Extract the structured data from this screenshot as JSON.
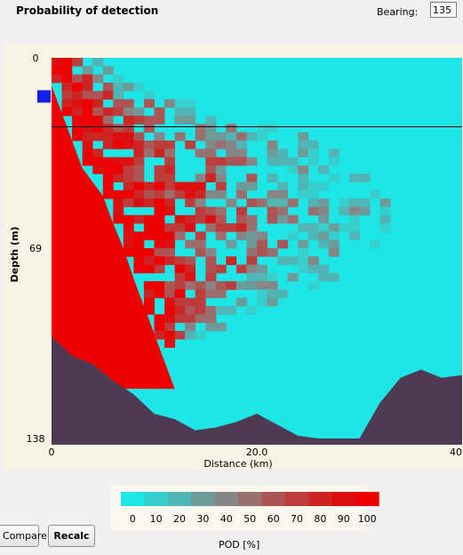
{
  "header": {
    "title": "Probability of detection",
    "bearing_label": "Bearing:",
    "bearing_value": "135"
  },
  "buttons": {
    "compare": "Compare",
    "recalc": "Recalc"
  },
  "legend": {
    "label": "POD [%]",
    "bins": [
      {
        "label": "0",
        "color": "#1ee6e6"
      },
      {
        "label": "10",
        "color": "#37cfce"
      },
      {
        "label": "20",
        "color": "#50b5b4"
      },
      {
        "label": "30",
        "color": "#6d9b9a"
      },
      {
        "label": "40",
        "color": "#868686"
      },
      {
        "label": "50",
        "color": "#9c6f6f"
      },
      {
        "label": "60",
        "color": "#ad5555"
      },
      {
        "label": "70",
        "color": "#bd3c3c"
      },
      {
        "label": "80",
        "color": "#cd2424"
      },
      {
        "label": "90",
        "color": "#dc1010"
      },
      {
        "label": "100",
        "color": "#ee0000"
      }
    ]
  },
  "colors": {
    "seabed": "#4e3a52",
    "panel": "#f7f4e6",
    "source_marker": "#1420e6",
    "depth_line": "#000000"
  },
  "chart_data": {
    "type": "heatmap",
    "xlabel": "Distance (km)",
    "ylabel": "Depth (m)",
    "xlim": [
      0,
      40
    ],
    "ylim": [
      0,
      138
    ],
    "x_ticks": [
      {
        "value": 0,
        "label": "0"
      },
      {
        "value": 20,
        "label": "20.0"
      },
      {
        "value": 40,
        "label": "40"
      }
    ],
    "y_ticks": [
      {
        "value": 0,
        "label": "0"
      },
      {
        "value": 69,
        "label": "69"
      },
      {
        "value": 138,
        "label": "138"
      }
    ],
    "source_depth_m": 14,
    "receiver_depth_m": 25,
    "seabed_profile": [
      [
        0,
        101
      ],
      [
        2,
        108
      ],
      [
        4,
        111
      ],
      [
        6,
        117
      ],
      [
        8,
        122
      ],
      [
        10,
        129
      ],
      [
        12,
        131
      ],
      [
        14,
        135
      ],
      [
        16,
        134
      ],
      [
        18,
        132
      ],
      [
        20,
        129
      ],
      [
        22,
        133
      ],
      [
        24,
        137
      ],
      [
        26,
        141
      ],
      [
        28,
        142
      ],
      [
        30,
        142
      ],
      [
        32,
        125
      ],
      [
        34,
        116
      ],
      [
        36,
        113
      ],
      [
        38,
        116
      ],
      [
        40,
        115
      ]
    ],
    "detection_boundary": [
      [
        0,
        0,
        4
      ],
      [
        10,
        0,
        8
      ],
      [
        20,
        1,
        17
      ],
      [
        30,
        2,
        26
      ],
      [
        40,
        3,
        29
      ],
      [
        50,
        5,
        32
      ],
      [
        60,
        6,
        33
      ],
      [
        69,
        7,
        31
      ],
      [
        80,
        8,
        27
      ],
      [
        90,
        9,
        21
      ],
      [
        100,
        10,
        15
      ],
      [
        110,
        11,
        11
      ],
      [
        120,
        12,
        10
      ]
    ]
  }
}
